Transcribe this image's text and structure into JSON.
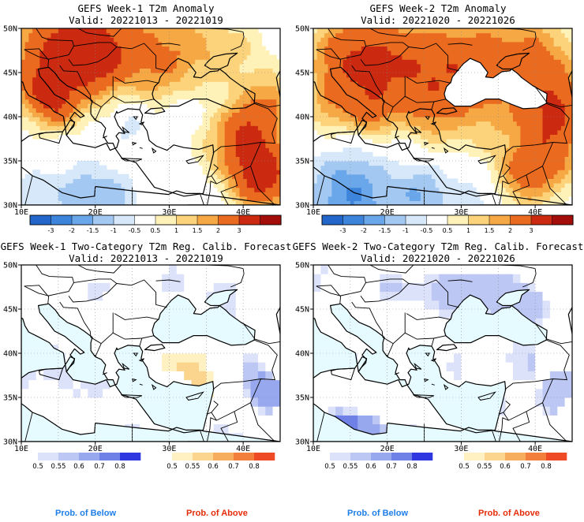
{
  "panels": [
    {
      "id": "w1-anom",
      "title": "GEFS Week-1 T2m Anomaly",
      "valid": "Valid: 20221013 - 20221019",
      "kind": "anomaly",
      "xticks": [
        "10E",
        "20E",
        "30E",
        "40E"
      ],
      "yticks": [
        "50N",
        "45N",
        "40N",
        "35N",
        "30N"
      ],
      "fill_levels": [
        "red3",
        "red2",
        "orange1",
        "white",
        "white",
        "lightblue",
        "white",
        "orange2",
        "orange3",
        "red2",
        "orange2",
        "orange1",
        "white",
        "white",
        "white",
        "white",
        "white",
        "lightblue",
        "lightblue",
        "white",
        "white",
        "white",
        "orange2",
        "red1",
        "orange1",
        "white",
        "lightblue",
        "white",
        "white",
        "white",
        "white",
        "orange2",
        "red1",
        "red2",
        "orange1",
        "white",
        "white",
        "blue1",
        "blue1",
        "white",
        "white",
        "white",
        "orange2",
        "red2"
      ],
      "colorbar_ticks": [
        "-3",
        "-2",
        "-1.5",
        "-1",
        "-0.5",
        "0.5",
        "1",
        "1.5",
        "2",
        "3"
      ]
    },
    {
      "id": "w2-anom",
      "title": "GEFS Week-2 T2m Anomaly",
      "valid": "Valid: 20221020 - 20221026",
      "kind": "anomaly",
      "xticks": [
        "10E",
        "20E",
        "30E",
        "40E"
      ],
      "yticks": [
        "50N",
        "45N",
        "40N",
        "35N",
        "30N"
      ],
      "colorbar_ticks": [
        "-3",
        "-2",
        "-1.5",
        "-1",
        "-0.5",
        "0.5",
        "1",
        "1.5",
        "2",
        "3"
      ]
    },
    {
      "id": "w1-prob",
      "title": "GEFS Week-1 Two-Category T2m Reg. Calib. Forecast",
      "valid": "Valid: 20221013 - 20221019",
      "kind": "prob",
      "xticks": [
        "10E",
        "20E",
        "30E",
        "40E"
      ],
      "yticks": [
        "50N",
        "45N",
        "40N",
        "35N",
        "30N"
      ],
      "below_ticks": [
        "0.5",
        "0.55",
        "0.6",
        "0.7",
        "0.8"
      ],
      "above_ticks": [
        "0.5",
        "0.55",
        "0.6",
        "0.7",
        "0.8"
      ]
    },
    {
      "id": "w2-prob",
      "title": "GEFS Week-2 Two-Category T2m Reg. Calib. Forecast",
      "valid": "Valid: 20221020 - 20221026",
      "kind": "prob",
      "xticks": [
        "10E",
        "20E",
        "30E",
        "40E"
      ],
      "yticks": [
        "50N",
        "45N",
        "40N",
        "35N",
        "30N"
      ],
      "below_ticks": [
        "0.5",
        "0.55",
        "0.6",
        "0.7",
        "0.8"
      ],
      "above_ticks": [
        "0.5",
        "0.55",
        "0.6",
        "0.7",
        "0.8"
      ]
    }
  ],
  "anomaly_colors": [
    "#2166c8",
    "#3d85dc",
    "#6aa6ea",
    "#a3c8f2",
    "#d6e8fa",
    "#ffffff",
    "#fff2b8",
    "#fcd27a",
    "#f6a844",
    "#ea6a1f",
    "#cc2a10",
    "#a30e0a"
  ],
  "below_colors": [
    "#dce2fa",
    "#bcc7f4",
    "#98a8ee",
    "#6f80e6",
    "#2f38e0"
  ],
  "above_colors": [
    "#fff1c2",
    "#fbd48e",
    "#f7ad5e",
    "#f2803c",
    "#ee4a25"
  ],
  "prob_labels": {
    "below": "Prob. of Below",
    "above": "Prob. of Above",
    "below_color": "#1e7ee8",
    "above_color": "#e62b0a"
  }
}
